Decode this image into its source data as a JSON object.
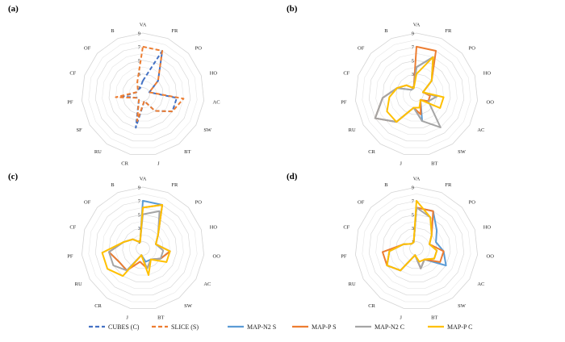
{
  "chart_data": [
    {
      "type": "radar",
      "panel": "(a)",
      "axes": [
        "VA",
        "FR",
        "PO",
        "HO",
        "AC",
        "SW",
        "BT",
        "J",
        "CR",
        "RU",
        "SF",
        "PF",
        "CF",
        "OF",
        "B"
      ],
      "range": [
        0,
        9
      ],
      "ticks": [
        "1",
        "3",
        "5",
        "7",
        "9"
      ],
      "series": [
        {
          "name": "CUBES (C)",
          "values": [
            2,
            7,
            3,
            1,
            5,
            5,
            3,
            1,
            5,
            1,
            1,
            3,
            1,
            1,
            1
          ]
        },
        {
          "name": "SLICE (S)",
          "values": [
            7,
            7,
            3,
            1,
            6,
            5,
            3,
            1,
            4,
            1,
            1,
            4,
            1,
            1,
            2
          ]
        }
      ]
    },
    {
      "type": "radar",
      "panel": "(b)",
      "axes": [
        "VA",
        "FR",
        "PO",
        "HO",
        "OO",
        "AC",
        "SW",
        "BT",
        "J",
        "CR",
        "RU",
        "PF",
        "CF",
        "OF",
        "B"
      ],
      "range": [
        0,
        9
      ],
      "ticks": [
        "1",
        "3",
        "5",
        "7",
        "9"
      ],
      "series": [
        {
          "name": "MAP-N2 S",
          "values": [
            4,
            6,
            3,
            1,
            3,
            2,
            1,
            4,
            2,
            5,
            7,
            5,
            3,
            1,
            1
          ]
        },
        {
          "name": "MAP-P S",
          "values": [
            7,
            7,
            3,
            1,
            2,
            2,
            1,
            3,
            2,
            5,
            7,
            5,
            3,
            2,
            1
          ]
        },
        {
          "name": "MAP-N2 C",
          "values": [
            4,
            6,
            3,
            1,
            3,
            2,
            6,
            4,
            2,
            5,
            7,
            5,
            3,
            1,
            1
          ]
        },
        {
          "name": "MAP-P C",
          "values": [
            3,
            6,
            3,
            1,
            4,
            4,
            1,
            2,
            2,
            5,
            5,
            4,
            3,
            2,
            1
          ]
        }
      ]
    },
    {
      "type": "radar",
      "panel": "(c)",
      "axes": [
        "VA",
        "FR",
        "PO",
        "HO",
        "OO",
        "AC",
        "SW",
        "BT",
        "J",
        "CR",
        "RU",
        "PF",
        "CF",
        "OF",
        "B"
      ],
      "range": [
        0,
        9
      ],
      "ticks": [
        "1",
        "3",
        "5",
        "7",
        "9"
      ],
      "series": [
        {
          "name": "MAP-N2 S",
          "values": [
            7,
            7,
            3,
            2,
            4,
            3,
            2,
            2,
            1,
            4,
            4,
            5,
            3,
            2,
            1
          ]
        },
        {
          "name": "MAP-P S",
          "values": [
            6,
            7,
            3,
            2,
            4,
            3,
            2,
            3,
            2,
            4,
            4,
            5,
            3,
            2,
            1
          ]
        },
        {
          "name": "MAP-N2 C",
          "values": [
            5,
            6,
            3,
            2,
            3,
            3,
            2,
            3,
            1,
            4,
            5,
            5,
            3,
            2,
            1
          ]
        },
        {
          "name": "MAP-P C",
          "values": [
            6,
            7,
            3,
            2,
            4,
            4,
            2,
            4,
            1,
            5,
            6,
            6,
            3,
            2,
            1
          ]
        }
      ]
    },
    {
      "type": "radar",
      "panel": "(d)",
      "axes": [
        "VA",
        "FR",
        "PO",
        "HO",
        "OO",
        "AC",
        "SW",
        "BT",
        "J",
        "CR",
        "RU",
        "PF",
        "CF",
        "OF",
        "B"
      ],
      "range": [
        0,
        9
      ],
      "ticks": [
        "1",
        "3",
        "5",
        "7",
        "9"
      ],
      "series": [
        {
          "name": "MAP-N2 S",
          "values": [
            6,
            6,
            4,
            3,
            4,
            5,
            2,
            3,
            1,
            4,
            5,
            4,
            2,
            1,
            1
          ]
        },
        {
          "name": "MAP-P S",
          "values": [
            6,
            6,
            3,
            2,
            4,
            4,
            2,
            3,
            1,
            4,
            5,
            5,
            2,
            1,
            1
          ]
        },
        {
          "name": "MAP-N2 C",
          "values": [
            6,
            5,
            3,
            2,
            3,
            3,
            2,
            3,
            1,
            4,
            5,
            4,
            2,
            1,
            1
          ]
        },
        {
          "name": "MAP-P C",
          "values": [
            7,
            5,
            3,
            2,
            3,
            3,
            2,
            2,
            1,
            4,
            5,
            4,
            2,
            1,
            1
          ]
        }
      ]
    }
  ],
  "legend": [
    {
      "name": "CUBES (C)",
      "color": "#4472C4",
      "style": "dashed"
    },
    {
      "name": "SLICE (S)",
      "color": "#ED7D31",
      "style": "dashed"
    },
    {
      "name": "MAP-N2 S",
      "color": "#5B9BD5",
      "style": "solid"
    },
    {
      "name": "MAP-P S",
      "color": "#ED7D31",
      "style": "solid"
    },
    {
      "name": "MAP-N2 C",
      "color": "#A5A5A5",
      "style": "solid"
    },
    {
      "name": "MAP-P C",
      "color": "#FFC000",
      "style": "solid"
    }
  ]
}
